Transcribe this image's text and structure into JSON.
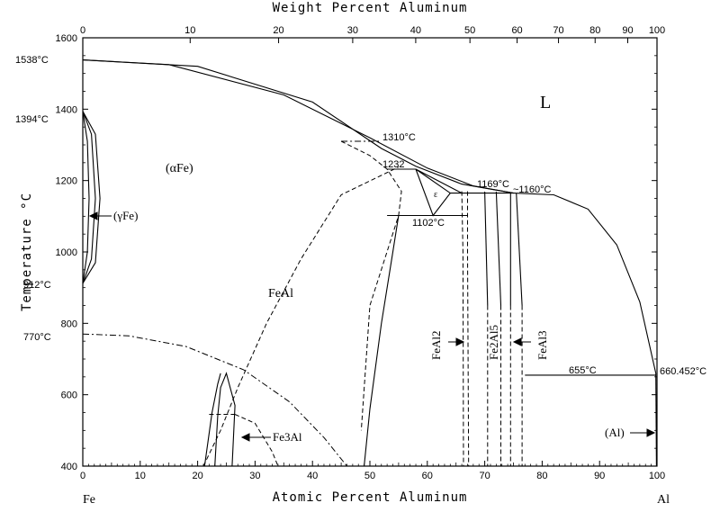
{
  "chart_data": {
    "type": "line",
    "title": "",
    "top_axis": {
      "label": "Weight Percent Aluminum",
      "ticks": [
        0,
        10,
        20,
        30,
        40,
        50,
        60,
        70,
        80,
        90,
        100
      ]
    },
    "x_axis": {
      "label": "Atomic Percent Aluminum",
      "range": [
        0,
        100
      ],
      "ticks": [
        0,
        10,
        20,
        30,
        40,
        50,
        60,
        70,
        80,
        90,
        100
      ],
      "left_end_label": "Fe",
      "right_end_label": "Al"
    },
    "y_axis": {
      "label": "Temperature °C",
      "range": [
        400,
        1600
      ],
      "ticks": [
        400,
        600,
        800,
        1000,
        1200,
        1400,
        1600
      ]
    },
    "temperature_labels": [
      "1538°C",
      "1394°C",
      "912°C",
      "770°C",
      "1310°C",
      "1232",
      "1102°C",
      "1169°C",
      "~1160°C",
      "655°C",
      "660.452°C"
    ],
    "phase_labels": {
      "liquid": "L",
      "alpha_fe": "(αFe)",
      "gamma_fe": "(γFe)",
      "feal": "FeAl",
      "fe3al": "Fe3Al",
      "epsilon": "ε",
      "feal2": "FeAl2",
      "fe2al5": "Fe2Al5",
      "feal3": "FeAl3",
      "al": "(Al)"
    },
    "series": [
      {
        "style": "solid",
        "points": [
          [
            0,
            1538
          ],
          [
            20,
            1520
          ],
          [
            40,
            1420
          ],
          [
            52,
            1290
          ],
          [
            58,
            1240
          ],
          [
            66,
            1190
          ],
          [
            75,
            1165
          ]
        ]
      },
      {
        "style": "solid",
        "points": [
          [
            0,
            1538
          ],
          [
            15,
            1525
          ],
          [
            35,
            1440
          ],
          [
            50,
            1320
          ],
          [
            60,
            1235
          ],
          [
            68,
            1185
          ],
          [
            75,
            1165
          ]
        ]
      },
      {
        "style": "solid",
        "points": [
          [
            75,
            1165
          ],
          [
            82,
            1160
          ],
          [
            88,
            1120
          ],
          [
            93,
            1020
          ],
          [
            97,
            860
          ],
          [
            99.8,
            660
          ]
        ]
      },
      {
        "style": "solid",
        "points": [
          [
            0,
            1394
          ],
          [
            1.5,
            1330
          ],
          [
            2.2,
            1150
          ],
          [
            1.5,
            980
          ],
          [
            0,
            912
          ]
        ]
      },
      {
        "style": "solid",
        "points": [
          [
            0,
            1394
          ],
          [
            0.8,
            1310
          ],
          [
            1.1,
            1150
          ],
          [
            0.8,
            1000
          ],
          [
            0,
            912
          ]
        ]
      },
      {
        "style": "solid",
        "points": [
          [
            0,
            1394
          ],
          [
            2.2,
            1330
          ],
          [
            3,
            1150
          ],
          [
            2.2,
            970
          ],
          [
            0,
            912
          ]
        ]
      },
      {
        "style": "dashdot",
        "points": [
          [
            0,
            770
          ],
          [
            8,
            765
          ],
          [
            18,
            735
          ],
          [
            28,
            670
          ],
          [
            36,
            580
          ],
          [
            42,
            480
          ],
          [
            46,
            400
          ]
        ]
      },
      {
        "style": "dashdot",
        "points": [
          [
            45,
            1310
          ],
          [
            52,
            1310
          ]
        ]
      },
      {
        "style": "dash",
        "points": [
          [
            21,
            400
          ],
          [
            24,
            500
          ],
          [
            27,
            620
          ],
          [
            32,
            800
          ],
          [
            38,
            980
          ],
          [
            45,
            1160
          ],
          [
            55,
            1238
          ]
        ]
      },
      {
        "style": "dash",
        "points": [
          [
            45,
            1310
          ],
          [
            50,
            1270
          ],
          [
            53,
            1232
          ],
          [
            55.5,
            1170
          ],
          [
            55,
            1102
          ],
          [
            50,
            850
          ],
          [
            48.5,
            500
          ]
        ]
      },
      {
        "style": "solid",
        "points": [
          [
            49,
            400
          ],
          [
            50,
            560
          ],
          [
            52,
            800
          ],
          [
            54,
            1000
          ],
          [
            55,
            1102
          ]
        ]
      },
      {
        "style": "solid",
        "points": [
          [
            53,
            1232
          ],
          [
            58,
            1232
          ]
        ]
      },
      {
        "style": "solid",
        "points": [
          [
            53,
            1102
          ],
          [
            67,
            1102
          ]
        ]
      },
      {
        "style": "solid",
        "points": [
          [
            58,
            1232
          ],
          [
            61,
            1102
          ],
          [
            64,
            1165
          ],
          [
            58,
            1232
          ]
        ]
      },
      {
        "style": "solid",
        "points": [
          [
            58,
            1232
          ],
          [
            66,
            1165
          ]
        ]
      },
      {
        "style": "solid",
        "points": [
          [
            64,
            1165
          ],
          [
            75,
            1165
          ]
        ]
      },
      {
        "style": "dash",
        "points": [
          [
            66,
            1170
          ],
          [
            66.2,
            1000
          ],
          [
            66.3,
            400
          ]
        ]
      },
      {
        "style": "dash",
        "points": [
          [
            67,
            1170
          ],
          [
            67,
            1000
          ],
          [
            67.2,
            400
          ]
        ]
      },
      {
        "style": "solid",
        "points": [
          [
            70,
            1169
          ],
          [
            70.5,
            850
          ]
        ]
      },
      {
        "style": "dash",
        "points": [
          [
            70.5,
            850
          ],
          [
            70.5,
            400
          ]
        ]
      },
      {
        "style": "solid",
        "points": [
          [
            72,
            1169
          ],
          [
            72.8,
            850
          ]
        ]
      },
      {
        "style": "dash",
        "points": [
          [
            72.8,
            850
          ],
          [
            72.8,
            400
          ]
        ]
      },
      {
        "style": "solid",
        "points": [
          [
            74.5,
            1165
          ],
          [
            74.5,
            850
          ]
        ]
      },
      {
        "style": "dash",
        "points": [
          [
            74.5,
            850
          ],
          [
            74.5,
            400
          ]
        ]
      },
      {
        "style": "solid",
        "points": [
          [
            75.5,
            1165
          ],
          [
            76.5,
            850
          ]
        ]
      },
      {
        "style": "dash",
        "points": [
          [
            76.5,
            850
          ],
          [
            76.5,
            400
          ]
        ]
      },
      {
        "style": "solid",
        "points": [
          [
            77,
            655
          ],
          [
            99.8,
            655
          ]
        ]
      },
      {
        "style": "solid",
        "points": [
          [
            99.8,
            660
          ],
          [
            99.9,
            400
          ]
        ]
      },
      {
        "style": "solid",
        "points": [
          [
            23,
            400
          ],
          [
            23.5,
            540
          ],
          [
            24,
            620
          ],
          [
            25,
            660
          ],
          [
            26.5,
            570
          ],
          [
            26,
            400
          ]
        ]
      },
      {
        "style": "solid",
        "points": [
          [
            21.2,
            400
          ],
          [
            22.5,
            550
          ],
          [
            23.5,
            630
          ],
          [
            24,
            660
          ]
        ]
      },
      {
        "style": "dash",
        "points": [
          [
            22,
            545
          ],
          [
            26.5,
            545
          ]
        ]
      },
      {
        "style": "dash",
        "points": [
          [
            26.5,
            545
          ],
          [
            30,
            520
          ],
          [
            33,
            440
          ],
          [
            34,
            400
          ]
        ]
      }
    ],
    "grid": false
  }
}
